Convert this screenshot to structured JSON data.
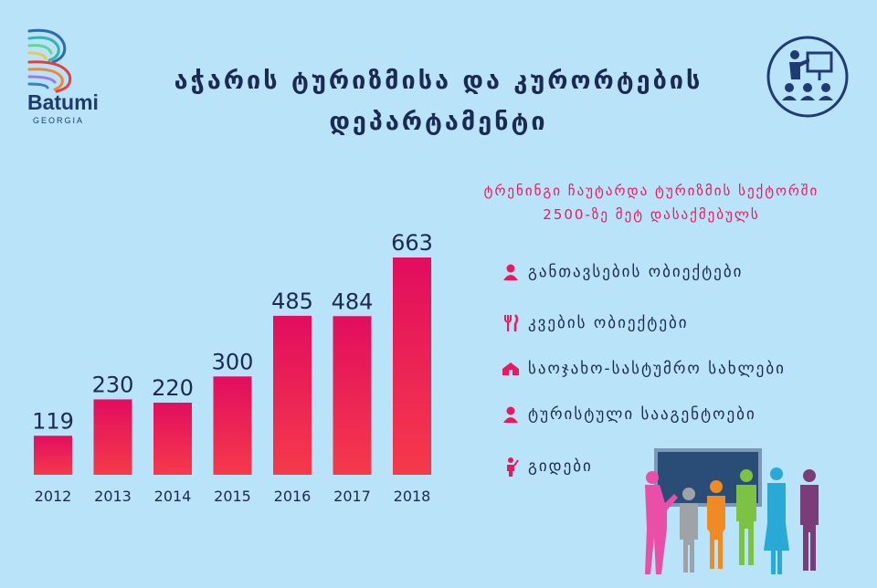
{
  "brand": {
    "name": "Batumi",
    "country": "GEORGIA"
  },
  "title": {
    "line1": "აჭარის  ტურიზმისა და კურორტების",
    "line2": "დეპარტამენტი"
  },
  "subtitle": {
    "line1": "ტრენინგი ჩაუტარდა ტურიზმის სექტორში",
    "line2": "2500-ზე მეტ დასაქმებულს"
  },
  "icons": {
    "header": "presenter-icon",
    "scene": "people-at-board-icon"
  },
  "legend_items": [
    {
      "icon": "person-icon",
      "label": "განთავსების ობიექტები"
    },
    {
      "icon": "fork-knife-icon",
      "label": "კვების ობიექტები"
    },
    {
      "icon": "house-icon",
      "label": "საოჯახო-სასტუმრო სახლები"
    },
    {
      "icon": "person-icon",
      "label": "ტურისტული სააგენტოები"
    },
    {
      "icon": "guide-icon",
      "label": "გიდები"
    }
  ],
  "colors": {
    "bar_top": "#e20d5f",
    "bar_bottom": "#f53a4a",
    "background": "#b9e3f8",
    "title": "#1a2a52",
    "accent": "#e8195e"
  },
  "chart_data": {
    "type": "bar",
    "categories": [
      "2012",
      "2013",
      "2014",
      "2015",
      "2016",
      "2017",
      "2018"
    ],
    "values": [
      119,
      230,
      220,
      300,
      485,
      484,
      663
    ],
    "ylim": [
      0,
      663
    ],
    "grid": false,
    "data_labels": true
  }
}
